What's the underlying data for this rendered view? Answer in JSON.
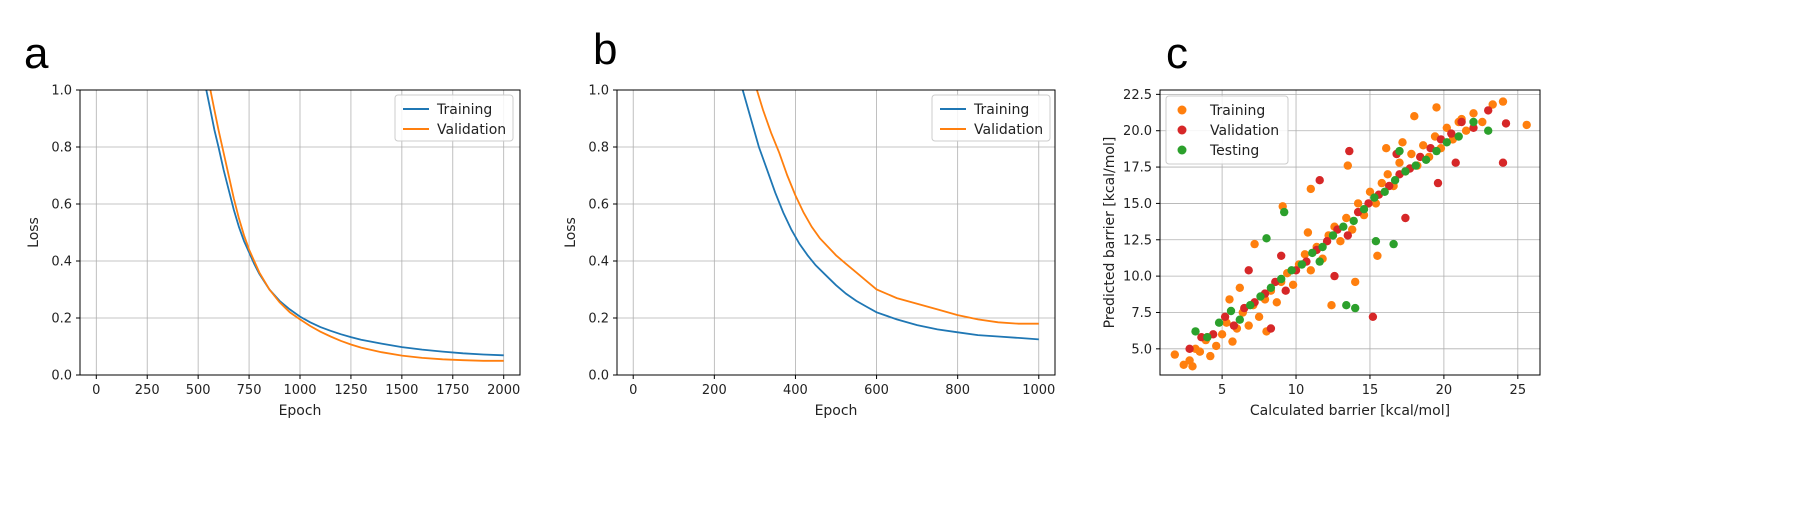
{
  "colors": {
    "blue": "#1f77b4",
    "orange": "#ff7f0e",
    "red": "#d62728",
    "green": "#2ca02c",
    "grid": "#b0b0b0"
  },
  "chart_data": [
    {
      "panel": "a",
      "type": "line",
      "xlabel": "Epoch",
      "ylabel": "Loss",
      "xlim": [
        -80,
        2080
      ],
      "ylim": [
        0.0,
        1.0
      ],
      "xticks": [
        0,
        250,
        500,
        750,
        1000,
        1250,
        1500,
        1750,
        2000
      ],
      "yticks": [
        0.0,
        0.2,
        0.4,
        0.6,
        0.8,
        1.0
      ],
      "legend_position": "top-right",
      "grid": true,
      "series": [
        {
          "name": "Training",
          "color": "#1f77b4",
          "x": [
            540,
            560,
            580,
            600,
            625,
            650,
            675,
            700,
            725,
            750,
            775,
            800,
            850,
            900,
            950,
            1000,
            1050,
            1100,
            1150,
            1200,
            1250,
            1300,
            1400,
            1500,
            1600,
            1700,
            1800,
            1900,
            2000
          ],
          "y": [
            1.0,
            0.93,
            0.86,
            0.8,
            0.72,
            0.65,
            0.58,
            0.52,
            0.47,
            0.43,
            0.39,
            0.355,
            0.3,
            0.26,
            0.23,
            0.205,
            0.185,
            0.168,
            0.155,
            0.143,
            0.133,
            0.124,
            0.11,
            0.098,
            0.089,
            0.082,
            0.076,
            0.072,
            0.069
          ]
        },
        {
          "name": "Validation",
          "color": "#ff7f0e",
          "x": [
            560,
            580,
            600,
            625,
            650,
            675,
            700,
            725,
            750,
            775,
            800,
            850,
            900,
            950,
            1000,
            1050,
            1100,
            1150,
            1200,
            1250,
            1300,
            1400,
            1500,
            1600,
            1700,
            1800,
            1900,
            2000
          ],
          "y": [
            1.0,
            0.93,
            0.86,
            0.78,
            0.7,
            0.62,
            0.55,
            0.49,
            0.44,
            0.4,
            0.36,
            0.3,
            0.255,
            0.22,
            0.195,
            0.172,
            0.152,
            0.135,
            0.12,
            0.107,
            0.096,
            0.08,
            0.068,
            0.06,
            0.055,
            0.052,
            0.05,
            0.05
          ]
        }
      ]
    },
    {
      "panel": "b",
      "type": "line",
      "xlabel": "Epoch",
      "ylabel": "Loss",
      "xlim": [
        -40,
        1040
      ],
      "ylim": [
        0.0,
        1.0
      ],
      "xticks": [
        0,
        200,
        400,
        600,
        800,
        1000
      ],
      "yticks": [
        0.0,
        0.2,
        0.4,
        0.6,
        0.8,
        1.0
      ],
      "legend_position": "top-right",
      "grid": true,
      "series": [
        {
          "name": "Training",
          "color": "#1f77b4",
          "x": [
            270,
            290,
            310,
            330,
            350,
            370,
            390,
            410,
            430,
            450,
            475,
            500,
            525,
            550,
            575,
            600,
            650,
            700,
            750,
            800,
            850,
            900,
            950,
            1000
          ],
          "y": [
            1.0,
            0.9,
            0.8,
            0.72,
            0.64,
            0.57,
            0.51,
            0.46,
            0.42,
            0.385,
            0.35,
            0.315,
            0.285,
            0.26,
            0.24,
            0.22,
            0.195,
            0.175,
            0.16,
            0.15,
            0.14,
            0.135,
            0.13,
            0.125
          ]
        },
        {
          "name": "Validation",
          "color": "#ff7f0e",
          "x": [
            305,
            320,
            340,
            360,
            380,
            400,
            420,
            440,
            460,
            480,
            500,
            525,
            550,
            575,
            600,
            650,
            700,
            750,
            800,
            850,
            900,
            950,
            1000
          ],
          "y": [
            1.0,
            0.93,
            0.85,
            0.78,
            0.7,
            0.63,
            0.57,
            0.52,
            0.48,
            0.45,
            0.42,
            0.39,
            0.36,
            0.33,
            0.3,
            0.27,
            0.25,
            0.23,
            0.21,
            0.195,
            0.185,
            0.18,
            0.18
          ]
        }
      ]
    },
    {
      "panel": "c",
      "type": "scatter",
      "xlabel": "Calculated barrier [kcal/mol]",
      "ylabel": "Predicted barrier [kcal/mol]",
      "xlim": [
        0.8,
        26.5
      ],
      "ylim": [
        3.2,
        22.8
      ],
      "xticks": [
        5,
        10,
        15,
        20,
        25
      ],
      "yticks": [
        5.0,
        7.5,
        10.0,
        12.5,
        15.0,
        17.5,
        20.0,
        22.5
      ],
      "legend_position": "top-left",
      "grid": true,
      "series": [
        {
          "name": "Training",
          "color": "#ff7f0e",
          "x": [
            1.8,
            2.4,
            2.8,
            3.2,
            3.5,
            3.9,
            4.2,
            4.6,
            5.0,
            5.3,
            5.7,
            6.0,
            6.4,
            6.8,
            7.1,
            7.5,
            7.9,
            8.3,
            8.7,
            9.0,
            9.4,
            9.8,
            10.2,
            10.6,
            11.0,
            11.4,
            11.8,
            12.2,
            12.6,
            13.0,
            13.4,
            13.8,
            14.2,
            14.6,
            15.0,
            15.4,
            15.8,
            16.2,
            16.6,
            17.0,
            17.4,
            17.8,
            18.2,
            18.6,
            19.0,
            19.4,
            19.8,
            20.2,
            20.6,
            21.0,
            21.5,
            22.0,
            22.6,
            23.3,
            24.0,
            25.6,
            5.5,
            7.2,
            9.1,
            10.8,
            12.4,
            14.0,
            16.1,
            18.0,
            11.0,
            13.5,
            8.0,
            6.2,
            15.5,
            17.2,
            19.5,
            21.2,
            4.0,
            3.0
          ],
          "y": [
            4.6,
            3.9,
            4.2,
            5.0,
            4.8,
            5.6,
            4.5,
            5.2,
            6.0,
            6.8,
            5.5,
            6.4,
            7.5,
            6.6,
            8.0,
            7.2,
            8.4,
            9.0,
            8.2,
            9.6,
            10.2,
            9.4,
            10.8,
            11.5,
            10.4,
            12.0,
            11.2,
            12.8,
            13.4,
            12.4,
            14.0,
            13.2,
            15.0,
            14.2,
            15.8,
            15.0,
            16.4,
            17.0,
            16.2,
            17.8,
            17.2,
            18.4,
            17.6,
            19.0,
            18.2,
            19.6,
            18.8,
            20.2,
            19.4,
            20.6,
            20.0,
            21.2,
            20.6,
            21.8,
            22.0,
            20.4,
            8.4,
            12.2,
            14.8,
            13.0,
            8.0,
            9.6,
            18.8,
            21.0,
            16.0,
            17.6,
            6.2,
            9.2,
            11.4,
            19.2,
            21.6,
            20.8,
            5.8,
            3.8
          ]
        },
        {
          "name": "Validation",
          "color": "#d62728",
          "x": [
            2.8,
            3.6,
            4.4,
            5.2,
            5.8,
            6.5,
            7.2,
            7.9,
            8.6,
            9.3,
            10.0,
            10.7,
            11.4,
            12.1,
            12.8,
            13.5,
            14.2,
            14.9,
            15.6,
            16.3,
            17.0,
            17.7,
            18.4,
            19.1,
            19.8,
            20.5,
            21.2,
            22.0,
            23.0,
            24.2,
            9.0,
            11.6,
            13.6,
            15.2,
            17.4,
            20.8,
            24.0,
            6.8,
            8.3,
            12.6,
            16.8,
            19.6
          ],
          "y": [
            5.0,
            5.8,
            6.0,
            7.2,
            6.6,
            7.8,
            8.2,
            8.8,
            9.6,
            9.0,
            10.4,
            11.0,
            11.8,
            12.4,
            13.2,
            12.8,
            14.4,
            15.0,
            15.6,
            16.2,
            17.0,
            17.4,
            18.2,
            18.8,
            19.4,
            19.8,
            20.6,
            20.2,
            21.4,
            20.5,
            11.4,
            16.6,
            18.6,
            7.2,
            14.0,
            17.8,
            17.8,
            10.4,
            6.4,
            10.0,
            18.4,
            16.4
          ]
        },
        {
          "name": "Testing",
          "color": "#2ca02c",
          "x": [
            3.2,
            4.0,
            4.8,
            5.6,
            6.2,
            6.9,
            7.6,
            8.3,
            9.0,
            9.7,
            10.4,
            11.1,
            11.8,
            12.5,
            13.2,
            13.9,
            14.6,
            15.3,
            16.0,
            16.7,
            17.4,
            18.1,
            18.8,
            19.5,
            20.2,
            21.0,
            22.0,
            23.0,
            9.2,
            13.4,
            14.0,
            15.4,
            16.6,
            11.6,
            8.0,
            17.0
          ],
          "y": [
            6.2,
            5.8,
            6.8,
            7.6,
            7.0,
            8.0,
            8.6,
            9.2,
            9.8,
            10.4,
            10.8,
            11.6,
            12.0,
            12.8,
            13.4,
            13.8,
            14.6,
            15.4,
            15.8,
            16.6,
            17.2,
            17.6,
            18.0,
            18.6,
            19.2,
            19.6,
            20.6,
            20.0,
            14.4,
            8.0,
            7.8,
            12.4,
            12.2,
            11.0,
            12.6,
            18.6
          ]
        }
      ]
    }
  ]
}
